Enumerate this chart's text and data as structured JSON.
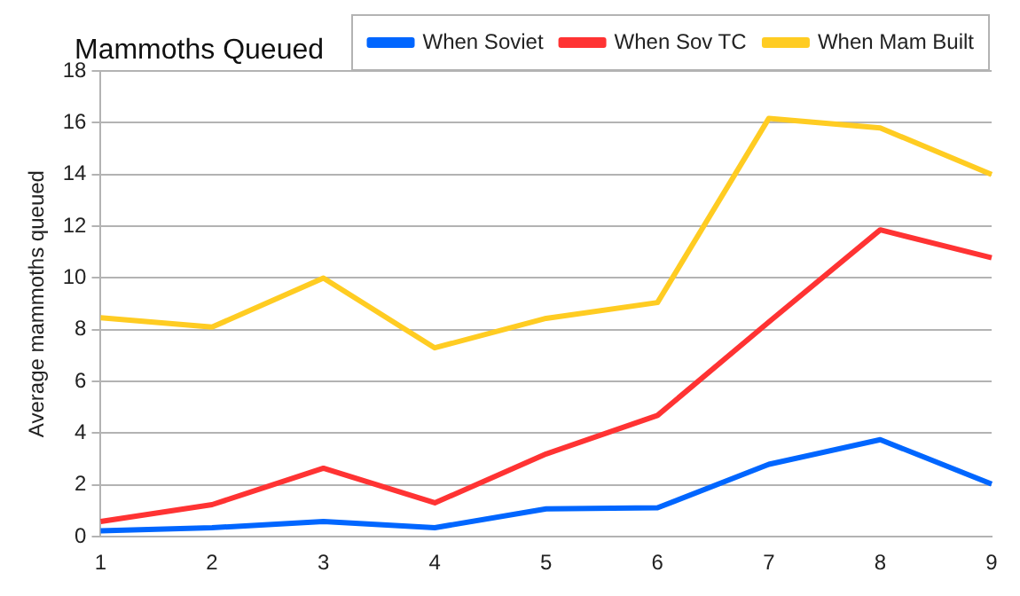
{
  "chart_data": {
    "type": "line",
    "title": "Mammoths Queued",
    "ylabel": "Average mammoths queued",
    "categories": [
      "1",
      "2",
      "3",
      "4",
      "5",
      "6",
      "7",
      "8",
      "9"
    ],
    "ylim": [
      0,
      18
    ],
    "yticks": [
      0,
      2,
      4,
      6,
      8,
      10,
      12,
      14,
      16,
      18
    ],
    "grid": "y",
    "legend": "top right",
    "marker": "none",
    "series": [
      {
        "name": "When Soviet",
        "color": "#0066ff",
        "values": [
          0.23,
          0.35,
          0.59,
          0.35,
          1.08,
          1.12,
          2.8,
          3.75,
          2.04
        ]
      },
      {
        "name": "When Sov TC",
        "color": "#ff3333",
        "values": [
          0.59,
          1.24,
          2.65,
          1.31,
          3.2,
          4.69,
          8.3,
          11.86,
          10.78
        ]
      },
      {
        "name": "When Mam Built",
        "color": "#ffcc22",
        "values": [
          8.46,
          8.1,
          10.0,
          7.3,
          8.44,
          9.05,
          16.17,
          15.8,
          14.0
        ]
      }
    ]
  }
}
